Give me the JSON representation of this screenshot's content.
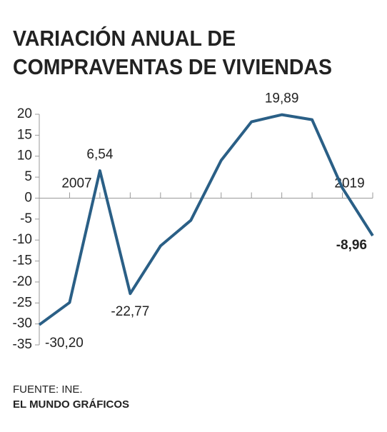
{
  "chart_data": {
    "type": "line",
    "title": [
      "VARIACIÓN ANUAL DE",
      "COMPRAVENTAS DE VIVIENDAS"
    ],
    "categories": [
      null,
      "2007",
      null,
      null,
      null,
      null,
      null,
      null,
      null,
      null,
      "2019",
      null
    ],
    "series": [
      {
        "name": null,
        "color": "#2a5f86",
        "values": [
          -30.2,
          -24.9,
          6.54,
          -22.77,
          -11.4,
          -5.3,
          9.0,
          18.2,
          19.89,
          18.7,
          2.4,
          -8.96
        ],
        "value_labels": [
          "-30,20",
          null,
          "6,54",
          "-22,77",
          null,
          null,
          null,
          null,
          "19,89",
          null,
          null,
          "-8,96"
        ]
      }
    ],
    "ylim": [
      -35,
      20
    ],
    "yticks": [
      20,
      15,
      10,
      5,
      0,
      -5,
      -10,
      -15,
      -20,
      -25,
      -30,
      -35
    ],
    "grid": false,
    "source": "FUENTE: INE.",
    "credit": "EL MUNDO GRÁFICOS"
  }
}
